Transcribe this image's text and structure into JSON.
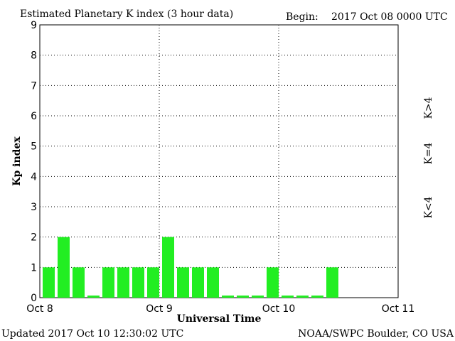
{
  "header": {
    "title": "Estimated Planetary K index (3 hour data)",
    "begin_label": "Begin:",
    "begin_value": "2017 Oct 08 0000 UTC"
  },
  "footer": {
    "updated": "Updated 2017 Oct 10 12:30:02 UTC",
    "credit": "NOAA/SWPC Boulder, CO USA"
  },
  "legend": {
    "high": {
      "label": "K>4",
      "color": "#ff2a00"
    },
    "equal": {
      "label": "K=4",
      "color": "#ffd200"
    },
    "low": {
      "label": "K<4",
      "color": "#22ee22"
    }
  },
  "chart_data": {
    "type": "bar",
    "title": "Estimated Planetary K index (3 hour data)",
    "xlabel": "Universal Time",
    "ylabel": "Kp index",
    "ylim": [
      0,
      9
    ],
    "yticks": [
      0,
      1,
      2,
      3,
      4,
      5,
      6,
      7,
      8,
      9
    ],
    "x_tick_labels": [
      "Oct 8",
      "Oct 9",
      "Oct 10",
      "Oct 11"
    ],
    "intervals_per_day": 8,
    "grid": true,
    "values": [
      1,
      2,
      1,
      0.07,
      1,
      1,
      1,
      1,
      2,
      1,
      1,
      1,
      0.07,
      0.07,
      0.07,
      1,
      0.07,
      0.07,
      0.07,
      1
    ],
    "bar_color": "#22ee22"
  }
}
